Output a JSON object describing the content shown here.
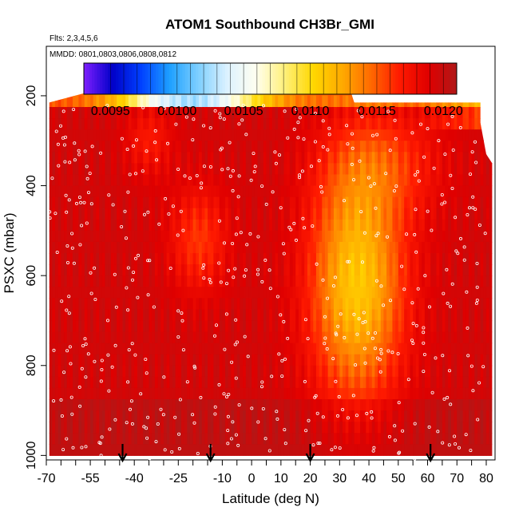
{
  "chart_data": {
    "type": "heatmap",
    "title": "ATOM1 Southbound CH3Br_GMI",
    "subtitle": "Flts: 2,3,4,5,6",
    "annotation": "MMDD: 0801,0803,0806,0808,0812",
    "xlabel": "Latitude (deg N)",
    "ylabel": "PSXC (mbar)",
    "xlim": [
      -70,
      83
    ],
    "ylim": [
      1010,
      90
    ],
    "y_reversed": true,
    "x_tick_labels": [
      "-70",
      "-55",
      "-40",
      "-25",
      "-10",
      "0",
      "10",
      "20",
      "30",
      "40",
      "50",
      "60",
      "70",
      "80"
    ],
    "x_tick_values": [
      -70,
      -55,
      -40,
      -25,
      -10,
      0,
      10,
      20,
      30,
      40,
      50,
      60,
      70,
      80
    ],
    "y_tick_labels": [
      "200",
      "400",
      "600",
      "800",
      "1000"
    ],
    "y_tick_values": [
      200,
      400,
      600,
      800,
      1000
    ],
    "colorbar": {
      "tick_labels": [
        "0.0095",
        "0.0100",
        "0.0105",
        "0.0110",
        "0.0115",
        "0.0120"
      ],
      "tick_values": [
        0.0095,
        0.01,
        0.0105,
        0.011,
        0.0115,
        0.012
      ],
      "range": [
        0.0093,
        0.0121
      ],
      "colors": [
        "#7f1fff",
        "#0000c8",
        "#0040ff",
        "#1ea0ff",
        "#7fd0ff",
        "#ddf2ff",
        "#fffff0",
        "#fff07a",
        "#ffd700",
        "#ffaa00",
        "#ff6a00",
        "#ff1a00",
        "#e00000",
        "#b01818"
      ]
    },
    "data_range_x": [
      -69,
      80
    ],
    "data_top_mbar": [
      [
        -69,
        215
      ],
      [
        -46,
        175
      ],
      [
        33,
        175
      ],
      [
        35,
        215
      ],
      [
        78,
        215
      ],
      [
        78,
        260
      ],
      [
        80,
        330
      ],
      [
        82,
        350
      ],
      [
        82,
        1010
      ]
    ],
    "flight_arrows_lat": [
      -44,
      -14,
      20,
      61
    ],
    "grid": false,
    "legend": "none"
  }
}
